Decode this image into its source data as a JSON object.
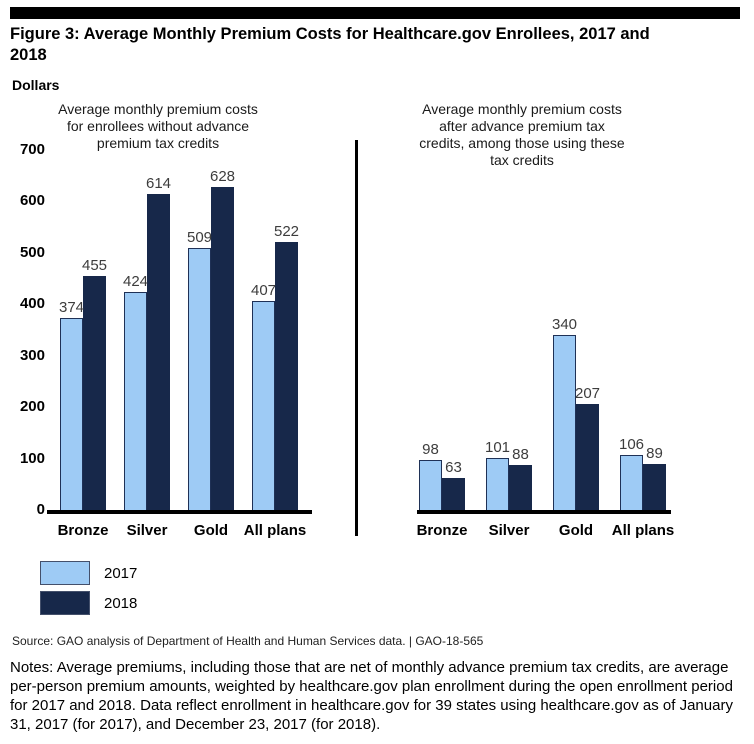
{
  "figure": {
    "title": "Figure 3: Average Monthly Premium Costs for Healthcare.gov Enrollees, 2017 and\n2018",
    "units_label": "Dollars",
    "source": "Source: GAO analysis of Department of Health and Human Services data.  |  GAO-18-565",
    "notes": "Notes: Average premiums, including those that are net of monthly advance premium tax credits, are average per-person premium amounts, weighted by healthcare.gov plan enrollment during the open enrollment period for 2017 and 2018. Data reflect enrollment in healthcare.gov for 39 states using healthcare.gov as of January 31, 2017 (for 2017), and December 23, 2017 (for 2018)."
  },
  "legend": {
    "items": [
      {
        "label": "2017",
        "color": "#9ecbf5"
      },
      {
        "label": "2018",
        "color": "#17284a"
      }
    ],
    "position": "bottom-left"
  },
  "colors": {
    "bar_2017_fill": "#9ecbf5",
    "bar_2018_fill": "#17284a",
    "bar_outline": "#1f3156",
    "axis_baseline": "#000000",
    "top_rule": "#000000"
  },
  "chart_data": [
    {
      "type": "bar",
      "title": "Average monthly premium costs\nfor enrollees without advance\npremium tax credits",
      "categories": [
        "Bronze",
        "Silver",
        "Gold",
        "All plans"
      ],
      "series": [
        {
          "name": "2017",
          "values": [
            374,
            424,
            509,
            407
          ]
        },
        {
          "name": "2018",
          "values": [
            455,
            614,
            628,
            522
          ]
        }
      ],
      "xlabel": "",
      "ylabel": "Dollars",
      "ylim": [
        0,
        700
      ],
      "yticks": [
        0,
        100,
        200,
        300,
        400,
        500,
        600,
        700
      ],
      "grid": false,
      "data_labels": true
    },
    {
      "type": "bar",
      "title": "Average monthly premium costs\nafter advance premium tax\ncredits, among those using these\ntax credits",
      "categories": [
        "Bronze",
        "Silver",
        "Gold",
        "All plans"
      ],
      "series": [
        {
          "name": "2017",
          "values": [
            98,
            101,
            340,
            106
          ]
        },
        {
          "name": "2018",
          "values": [
            63,
            88,
            207,
            89
          ]
        }
      ],
      "xlabel": "",
      "ylabel": "Dollars",
      "ylim": [
        0,
        700
      ],
      "yticks": [
        0,
        100,
        200,
        300,
        400,
        500,
        600,
        700
      ],
      "grid": false,
      "data_labels": true
    }
  ]
}
